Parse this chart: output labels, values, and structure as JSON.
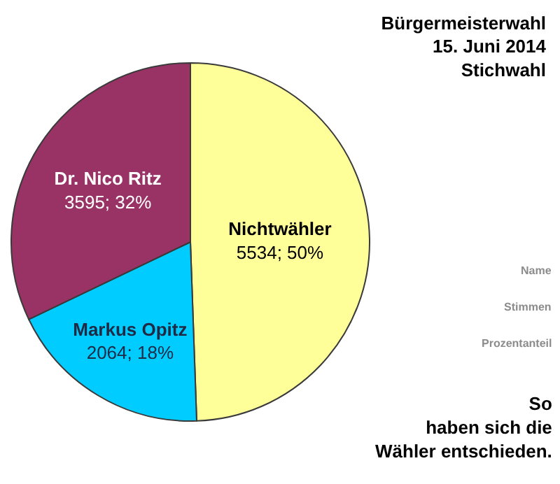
{
  "chart_data": {
    "type": "pie",
    "title": "Bürgermeisterwahl\n15. Juni 2014\nStichwahl",
    "categories": [
      "Nichtwähler",
      "Markus Opitz",
      "Dr. Nico Ritz"
    ],
    "values": [
      5534,
      2064,
      3595
    ],
    "value_labels": [
      "5534; 50%",
      "2064; 18%",
      "3595; 32%"
    ],
    "colors": [
      "#ffff99",
      "#00ccff",
      "#993366"
    ],
    "annotations": [
      "Name",
      "Stimmen",
      "Prozentanteil",
      "So\nhaben sich die\nWähler entschieden."
    ],
    "legend": false
  }
}
